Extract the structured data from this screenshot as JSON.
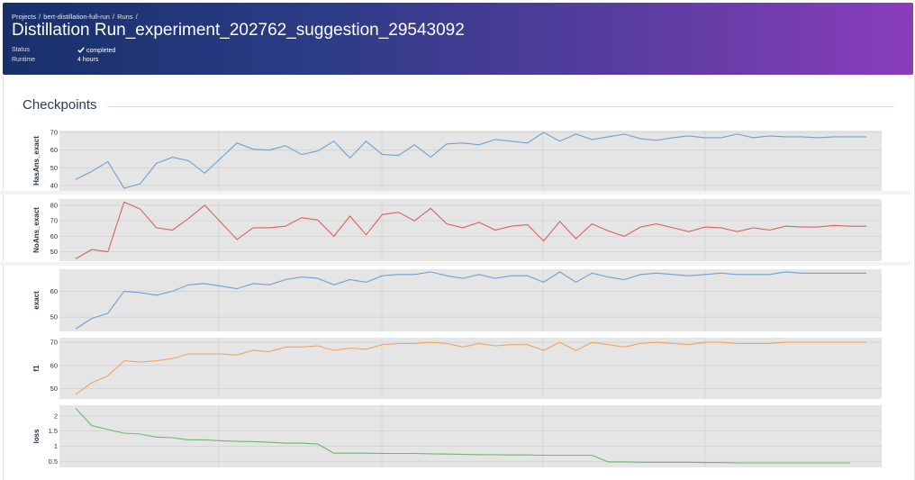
{
  "breadcrumb": {
    "projects": "Projects",
    "project": "bert-distillation-full-run",
    "runs": "Runs",
    "separator": "/"
  },
  "title": "Distillation Run_experiment_202762_suggestion_29543092",
  "meta": {
    "status_label": "Status",
    "status_value": "completed",
    "runtime_label": "Runtime",
    "runtime_value": "4 hours"
  },
  "section_title": "Checkpoints",
  "colors": {
    "HasAns_exact": "#6fa0cd",
    "NoAns_exact": "#d9625f",
    "exact": "#6fa0cd",
    "f1": "#f0a462",
    "loss": "#6bb96b",
    "plot_bg": "#e5e5e5",
    "grid": "#d2d2d2"
  },
  "chart_data": [
    {
      "type": "line",
      "ylabel": "HasAns_exact",
      "yticks": [
        40,
        50,
        60,
        70
      ],
      "ylim": [
        37,
        71
      ],
      "grid": true,
      "values": [
        43.5,
        48,
        53.5,
        38.5,
        41,
        52.5,
        56,
        54,
        47,
        55.5,
        64,
        60.5,
        60,
        62.5,
        57.5,
        59.5,
        65,
        55.5,
        65,
        57.5,
        57,
        63,
        56,
        63.5,
        64,
        63,
        66,
        65,
        64,
        70,
        65,
        69,
        66,
        67.5,
        69,
        66.5,
        65.5,
        67,
        68,
        67,
        67,
        69,
        67,
        68,
        67.5,
        67.5,
        67,
        67.5,
        67.5,
        67.5
      ]
    },
    {
      "type": "line",
      "ylabel": "NoAns_exact",
      "yticks": [
        50,
        60,
        70,
        80
      ],
      "ylim": [
        44,
        84
      ],
      "grid": true,
      "values": [
        45.5,
        51.5,
        50,
        82,
        77.5,
        65.5,
        64,
        71.5,
        80,
        69,
        58,
        65.5,
        65.5,
        66.5,
        72,
        70.5,
        60,
        73,
        61,
        74,
        75.5,
        70,
        78,
        68,
        65.5,
        69,
        64,
        66.5,
        67.5,
        57,
        69.5,
        58.5,
        68,
        63.5,
        60,
        66,
        68,
        65.5,
        63,
        66,
        65.5,
        63,
        65.5,
        64,
        66.5,
        66,
        66,
        67,
        66.5,
        66.5
      ]
    },
    {
      "type": "line",
      "ylabel": "exact",
      "yticks": [
        50,
        60
      ],
      "ylim": [
        44.5,
        68.5
      ],
      "grid": true,
      "values": [
        45.5,
        49.5,
        51.5,
        60,
        59.5,
        58.5,
        60,
        62.5,
        63,
        62,
        61,
        63,
        62.5,
        64.5,
        65.5,
        65,
        62.5,
        64.5,
        63.5,
        66,
        66.5,
        66.5,
        67.5,
        66,
        65,
        66.5,
        65,
        66,
        66,
        63.5,
        67.5,
        63.5,
        67,
        65.5,
        64.5,
        66.5,
        67,
        66.5,
        66,
        66.5,
        67,
        66.5,
        66.5,
        66.5,
        67.5,
        67,
        67,
        67,
        67,
        67
      ]
    },
    {
      "type": "line",
      "ylabel": "f1",
      "yticks": [
        50,
        60,
        70
      ],
      "ylim": [
        45.5,
        72
      ],
      "grid": true,
      "values": [
        47.5,
        52.5,
        55.5,
        62,
        61.5,
        62,
        63,
        65,
        65,
        65,
        64.5,
        66.5,
        66,
        68,
        68,
        68.5,
        66.5,
        67.5,
        67,
        69,
        69.5,
        69.5,
        70,
        69.5,
        68,
        69.5,
        68.5,
        69,
        69,
        66.5,
        70,
        66.5,
        70,
        69,
        68,
        69.5,
        70,
        69.5,
        69,
        70,
        70,
        69.5,
        69.5,
        69.5,
        70,
        70,
        70,
        70,
        70,
        70
      ]
    },
    {
      "type": "line",
      "ylabel": "loss",
      "yticks": [
        "0.5",
        "1",
        "1.5",
        "2"
      ],
      "ylim": [
        0.3,
        2.35
      ],
      "grid": true,
      "values": [
        2.25,
        1.68,
        1.55,
        1.43,
        1.4,
        1.3,
        1.28,
        1.21,
        1.21,
        1.18,
        1.16,
        1.15,
        1.13,
        1.1,
        1.1,
        1.07,
        0.77,
        0.77,
        0.77,
        0.76,
        0.76,
        0.76,
        0.75,
        0.74,
        0.73,
        0.72,
        0.72,
        0.71,
        0.71,
        0.7,
        0.7,
        0.7,
        0.7,
        0.48,
        0.48,
        0.47,
        0.47,
        0.47,
        0.47,
        0.46,
        0.46,
        0.45,
        0.45,
        0.45,
        0.45,
        0.45,
        0.45,
        0.45,
        0.45
      ]
    }
  ]
}
